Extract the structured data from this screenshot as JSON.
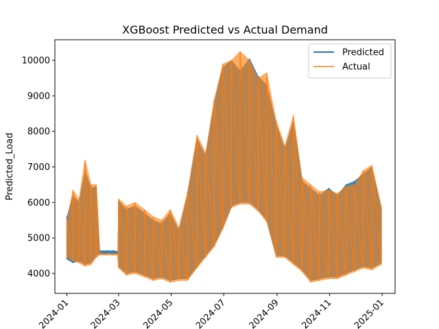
{
  "chart_data": {
    "type": "line",
    "title": "XGBoost Predicted vs Actual Demand",
    "xlabel": "",
    "ylabel": "Predicted_Load",
    "x_range": [
      "2023-12-18",
      "2025-01-16"
    ],
    "ylim": [
      3440,
      10580
    ],
    "x_ticks": [
      "2024-01",
      "2024-03",
      "2024-05",
      "2024-07",
      "2024-09",
      "2024-11",
      "2025-01"
    ],
    "y_ticks": [
      4000,
      5000,
      6000,
      7000,
      8000,
      9000,
      10000
    ],
    "grid": false,
    "legend": "top-right",
    "series": [
      {
        "name": "Predicted",
        "color": "#1f77b4",
        "points": [
          [
            "2024-01-01",
            4400,
            5600
          ],
          [
            "2024-01-08",
            4300,
            6200
          ],
          [
            "2024-01-15",
            4350,
            6000
          ],
          [
            "2024-01-22",
            4250,
            6900
          ],
          [
            "2024-01-29",
            4300,
            6400
          ],
          [
            "2024-02-04",
            4500,
            6450
          ],
          [
            "2024-02-08",
            4560,
            4640
          ],
          [
            "2024-02-16",
            4560,
            4640
          ],
          [
            "2024-02-24",
            4560,
            4640
          ],
          [
            "2024-02-29",
            4560,
            4620
          ],
          [
            "2024-03-01",
            4200,
            6050
          ],
          [
            "2024-03-10",
            4000,
            5800
          ],
          [
            "2024-03-20",
            4050,
            5900
          ],
          [
            "2024-03-31",
            3950,
            5700
          ],
          [
            "2024-04-10",
            3850,
            5500
          ],
          [
            "2024-04-20",
            3900,
            5400
          ],
          [
            "2024-04-30",
            3800,
            5700
          ],
          [
            "2024-05-10",
            3850,
            5200
          ],
          [
            "2024-05-20",
            3850,
            6200
          ],
          [
            "2024-05-31",
            4200,
            7800
          ],
          [
            "2024-06-10",
            4500,
            7300
          ],
          [
            "2024-06-20",
            4800,
            8800
          ],
          [
            "2024-06-30",
            5300,
            9800
          ],
          [
            "2024-07-10",
            5900,
            10000
          ],
          [
            "2024-07-20",
            6000,
            9700
          ],
          [
            "2024-07-31",
            6000,
            10050
          ],
          [
            "2024-08-10",
            5800,
            9550
          ],
          [
            "2024-08-20",
            5500,
            9300
          ],
          [
            "2024-08-31",
            4500,
            8200
          ],
          [
            "2024-09-10",
            4500,
            7500
          ],
          [
            "2024-09-20",
            4300,
            8300
          ],
          [
            "2024-09-30",
            4100,
            6600
          ],
          [
            "2024-10-10",
            3800,
            6400
          ],
          [
            "2024-10-20",
            3850,
            6200
          ],
          [
            "2024-10-31",
            3900,
            6400
          ],
          [
            "2024-11-10",
            3900,
            6200
          ],
          [
            "2024-11-20",
            4000,
            6500
          ],
          [
            "2024-11-30",
            4100,
            6600
          ],
          [
            "2024-12-10",
            4200,
            6800
          ],
          [
            "2024-12-20",
            4150,
            7000
          ],
          [
            "2024-12-31",
            4300,
            5800
          ]
        ]
      },
      {
        "name": "Actual",
        "color": "#ff7f0e",
        "points": [
          [
            "2024-01-01",
            4450,
            5500
          ],
          [
            "2024-01-08",
            4350,
            6350
          ],
          [
            "2024-01-15",
            4300,
            6100
          ],
          [
            "2024-01-22",
            4200,
            7200
          ],
          [
            "2024-01-29",
            4250,
            6500
          ],
          [
            "2024-02-04",
            4450,
            6500
          ],
          [
            "2024-02-08",
            4520,
            4560
          ],
          [
            "2024-02-16",
            4520,
            4560
          ],
          [
            "2024-02-24",
            4520,
            4560
          ],
          [
            "2024-02-29",
            4520,
            4560
          ],
          [
            "2024-03-01",
            4150,
            6100
          ],
          [
            "2024-03-10",
            3950,
            5900
          ],
          [
            "2024-03-20",
            4000,
            6000
          ],
          [
            "2024-03-31",
            3900,
            5800
          ],
          [
            "2024-04-10",
            3800,
            5600
          ],
          [
            "2024-04-20",
            3850,
            5500
          ],
          [
            "2024-04-30",
            3750,
            5800
          ],
          [
            "2024-05-10",
            3800,
            5300
          ],
          [
            "2024-05-20",
            3800,
            6300
          ],
          [
            "2024-05-31",
            4150,
            7900
          ],
          [
            "2024-06-10",
            4450,
            7400
          ],
          [
            "2024-06-20",
            4750,
            8900
          ],
          [
            "2024-06-30",
            5250,
            9900
          ],
          [
            "2024-07-10",
            5850,
            10000
          ],
          [
            "2024-07-20",
            5950,
            10250
          ],
          [
            "2024-07-31",
            5950,
            10000
          ],
          [
            "2024-08-10",
            5750,
            9500
          ],
          [
            "2024-08-20",
            5450,
            9650
          ],
          [
            "2024-08-31",
            4450,
            8300
          ],
          [
            "2024-09-10",
            4450,
            7600
          ],
          [
            "2024-09-20",
            4250,
            8450
          ],
          [
            "2024-09-30",
            4050,
            6700
          ],
          [
            "2024-10-10",
            3750,
            6500
          ],
          [
            "2024-10-20",
            3800,
            6300
          ],
          [
            "2024-10-31",
            3850,
            6350
          ],
          [
            "2024-11-10",
            3850,
            6250
          ],
          [
            "2024-11-20",
            3950,
            6450
          ],
          [
            "2024-11-30",
            4050,
            6500
          ],
          [
            "2024-12-10",
            4150,
            6900
          ],
          [
            "2024-12-20",
            4100,
            7050
          ],
          [
            "2024-12-31",
            4250,
            5900
          ]
        ]
      }
    ]
  }
}
